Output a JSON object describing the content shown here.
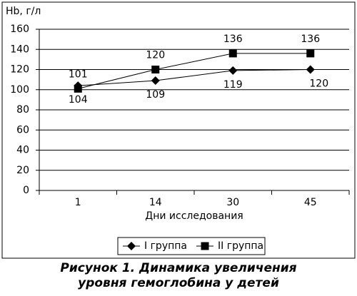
{
  "chart_data": {
    "type": "line",
    "y_axis_label": "Hb, г/л",
    "x_axis_label": "Дни исследования",
    "caption": "Рисунок 1. Динамика увеличения уровня гемоглобина у детей",
    "categories": [
      "1",
      "14",
      "30",
      "45"
    ],
    "series": [
      {
        "name": "I группа",
        "color": "#000000",
        "marker": "diamond",
        "values": [
          104,
          109,
          119,
          120
        ]
      },
      {
        "name": "II группа",
        "color": "#000000",
        "marker": "square",
        "values": [
          101,
          120,
          136,
          136
        ]
      }
    ],
    "ylim": [
      0,
      160
    ],
    "yticks": [
      0,
      20,
      40,
      60,
      80,
      100,
      120,
      140,
      160
    ],
    "grid": true,
    "legend": "bottom"
  }
}
